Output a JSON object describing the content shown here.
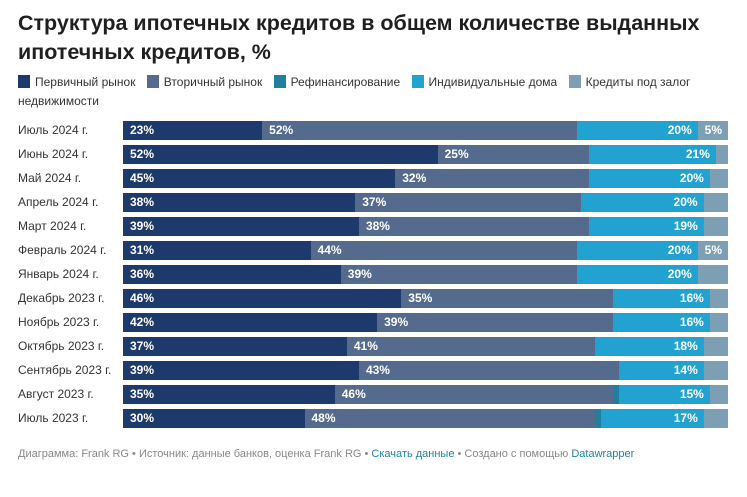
{
  "chart_data": {
    "type": "bar",
    "orientation": "horizontal",
    "stacked": true,
    "title": "Структура ипотечных кредитов в общем количестве выданных ипотечных кредитов, %",
    "xlabel": "",
    "ylabel": "",
    "xlim": [
      0,
      100
    ],
    "grid": false,
    "legend_position": "top",
    "categories": [
      "Июль 2024 г.",
      "Июнь 2024 г.",
      "Май 2024 г.",
      "Апрель 2024 г.",
      "Март 2024 г.",
      "Февраль 2024 г.",
      "Январь 2024 г.",
      "Декабрь 2023 г.",
      "Ноябрь 2023 г.",
      "Октябрь 2023 г.",
      "Сентябрь 2023 г.",
      "Август 2023 г.",
      "Июль 2023 г."
    ],
    "series": [
      {
        "key": "primary",
        "name": "Первичный рынок",
        "color": "#1d3a6c",
        "label_align": "left",
        "values": [
          23,
          52,
          45,
          38,
          39,
          31,
          36,
          46,
          42,
          37,
          39,
          35,
          30
        ],
        "labels": [
          "23%",
          "52%",
          "45%",
          "38%",
          "39%",
          "31%",
          "36%",
          "46%",
          "42%",
          "37%",
          "39%",
          "35%",
          "30%"
        ]
      },
      {
        "key": "secondary",
        "name": "Вторичный рынок",
        "color": "#556b8e",
        "label_align": "left",
        "values": [
          52,
          25,
          32,
          37,
          38,
          44,
          39,
          35,
          39,
          41,
          43,
          46,
          48
        ],
        "labels": [
          "52%",
          "25%",
          "32%",
          "37%",
          "38%",
          "44%",
          "39%",
          "35%",
          "39%",
          "41%",
          "43%",
          "46%",
          "48%"
        ]
      },
      {
        "key": "refinancing",
        "name": "Рефинансирование",
        "color": "#1f7f9d",
        "label_align": "left",
        "values": [
          0,
          0,
          0,
          0,
          0,
          0,
          0,
          0,
          0,
          0,
          0,
          1,
          1
        ],
        "labels": [
          null,
          null,
          null,
          null,
          null,
          null,
          null,
          null,
          null,
          null,
          null,
          null,
          null
        ]
      },
      {
        "key": "individual",
        "name": "Индивидуальные дома",
        "color": "#21a2d1",
        "label_align": "right",
        "values": [
          20,
          21,
          20,
          20,
          19,
          20,
          20,
          16,
          16,
          18,
          14,
          15,
          17
        ],
        "labels": [
          "20%",
          "21%",
          "20%",
          "20%",
          "19%",
          "20%",
          "20%",
          "16%",
          "16%",
          "18%",
          "14%",
          "15%",
          "17%"
        ]
      },
      {
        "key": "property-collateral",
        "name": "Кредиты под залог недвижимости",
        "color": "#7d9fb3",
        "label_align": "right",
        "values": [
          5,
          2,
          3,
          4,
          4,
          5,
          5,
          3,
          3,
          4,
          4,
          3,
          4
        ],
        "labels": [
          "5%",
          null,
          null,
          null,
          null,
          "5%",
          null,
          null,
          null,
          null,
          null,
          null,
          null
        ]
      }
    ]
  },
  "footer": {
    "chart_by": "Диаграмма: Frank RG",
    "source": "Источник: данные банков, оценка Frank RG",
    "download_link": "Скачать данные",
    "created_with": "Создано с помощью",
    "tool_link": "Datawrapper",
    "separator": " • "
  }
}
